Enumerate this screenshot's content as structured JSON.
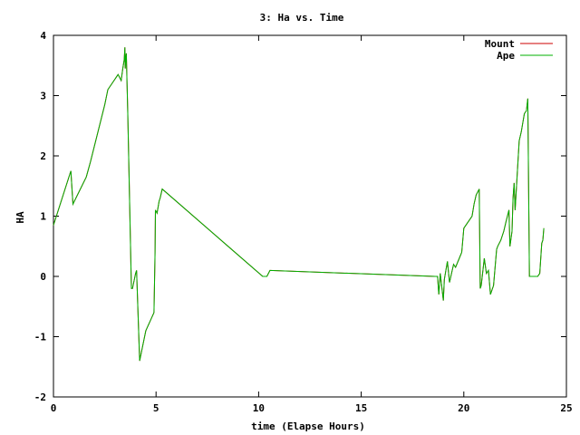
{
  "chart_data": {
    "type": "line",
    "title": "3: Ha vs. Time",
    "xlabel": "time (Elapse Hours)",
    "ylabel": "HA",
    "xlim": [
      0,
      25
    ],
    "ylim": [
      -2,
      4
    ],
    "xticks": [
      "0",
      "5",
      "10",
      "15",
      "20",
      "25"
    ],
    "yticks": [
      "-2",
      "-1",
      "0",
      "1",
      "2",
      "3",
      "4"
    ],
    "grid": false,
    "legend_position": "top-right",
    "series": [
      {
        "name": "Mount",
        "color": "#cc0000",
        "x": [
          0,
          0.85,
          0.95,
          1.6,
          1.8,
          2.5,
          2.65,
          3.15,
          3.3,
          3.38,
          3.45,
          3.48,
          3.5,
          3.52,
          3.55,
          3.58,
          3.62,
          3.8,
          3.85,
          4.0,
          4.05,
          4.2,
          4.5,
          4.9,
          4.95,
          4.97,
          5.05,
          5.15,
          5.2,
          5.3,
          10.2,
          10.4,
          10.55,
          18.6,
          18.72,
          18.78,
          18.85,
          19.0,
          19.05,
          19.2,
          19.3,
          19.5,
          19.6,
          19.9,
          20.0,
          20.4,
          20.5,
          20.6,
          20.75,
          20.8,
          20.85,
          21.0,
          21.1,
          21.2,
          21.3,
          21.45,
          21.6,
          21.65,
          21.8,
          21.95,
          22.05,
          22.2,
          22.25,
          22.35,
          22.4,
          22.45,
          22.5,
          22.7,
          22.8,
          22.95,
          23.05,
          23.12,
          23.2,
          23.3,
          23.45,
          23.6,
          23.7,
          23.8,
          23.85,
          23.9
        ],
        "y": [
          0.85,
          1.75,
          1.2,
          1.65,
          1.9,
          2.85,
          3.1,
          3.35,
          3.25,
          3.45,
          3.6,
          3.8,
          3.45,
          3.6,
          3.7,
          3.25,
          2.7,
          -0.2,
          -0.2,
          0.05,
          0.1,
          -1.4,
          -0.9,
          -0.6,
          0.4,
          1.1,
          1.05,
          1.25,
          1.3,
          1.45,
          0,
          0,
          0.1,
          0,
          0,
          -0.3,
          0.05,
          -0.4,
          -0.05,
          0.25,
          -0.1,
          0.2,
          0.15,
          0.4,
          0.8,
          1.0,
          1.2,
          1.35,
          1.45,
          -0.2,
          -0.15,
          0.3,
          0.05,
          0.1,
          -0.3,
          -0.15,
          0.45,
          0.5,
          0.6,
          0.75,
          0.9,
          1.1,
          0.5,
          0.75,
          1.3,
          1.55,
          1.1,
          2.25,
          2.4,
          2.7,
          2.75,
          2.95,
          0,
          0,
          0,
          0,
          0.05,
          0.55,
          0.6,
          0.8
        ]
      },
      {
        "name": "Ape",
        "color": "#00b000",
        "x": [
          0,
          0.85,
          0.95,
          1.6,
          1.8,
          2.5,
          2.65,
          3.15,
          3.3,
          3.38,
          3.45,
          3.48,
          3.5,
          3.52,
          3.55,
          3.58,
          3.62,
          3.8,
          3.85,
          4.0,
          4.05,
          4.2,
          4.5,
          4.9,
          4.95,
          4.97,
          5.05,
          5.15,
          5.2,
          5.3,
          10.2,
          10.4,
          10.55,
          18.6,
          18.72,
          18.78,
          18.85,
          19.0,
          19.05,
          19.2,
          19.3,
          19.5,
          19.6,
          19.9,
          20.0,
          20.4,
          20.5,
          20.6,
          20.75,
          20.8,
          20.85,
          21.0,
          21.1,
          21.2,
          21.3,
          21.45,
          21.6,
          21.65,
          21.8,
          21.95,
          22.05,
          22.2,
          22.25,
          22.35,
          22.4,
          22.45,
          22.5,
          22.7,
          22.8,
          22.95,
          23.05,
          23.12,
          23.2,
          23.3,
          23.45,
          23.6,
          23.7,
          23.8,
          23.85,
          23.9
        ],
        "y": [
          0.85,
          1.75,
          1.2,
          1.65,
          1.9,
          2.85,
          3.1,
          3.35,
          3.25,
          3.45,
          3.6,
          3.8,
          3.45,
          3.6,
          3.7,
          3.25,
          2.7,
          -0.2,
          -0.2,
          0.05,
          0.1,
          -1.4,
          -0.9,
          -0.6,
          0.4,
          1.1,
          1.05,
          1.25,
          1.3,
          1.45,
          0,
          0,
          0.1,
          0,
          0,
          -0.3,
          0.05,
          -0.4,
          -0.05,
          0.25,
          -0.1,
          0.2,
          0.15,
          0.4,
          0.8,
          1.0,
          1.2,
          1.35,
          1.45,
          -0.2,
          -0.15,
          0.3,
          0.05,
          0.1,
          -0.3,
          -0.15,
          0.45,
          0.5,
          0.6,
          0.75,
          0.9,
          1.1,
          0.5,
          0.75,
          1.3,
          1.55,
          1.1,
          2.25,
          2.4,
          2.7,
          2.75,
          2.95,
          0,
          0,
          0,
          0,
          0.05,
          0.55,
          0.6,
          0.8
        ]
      }
    ]
  }
}
